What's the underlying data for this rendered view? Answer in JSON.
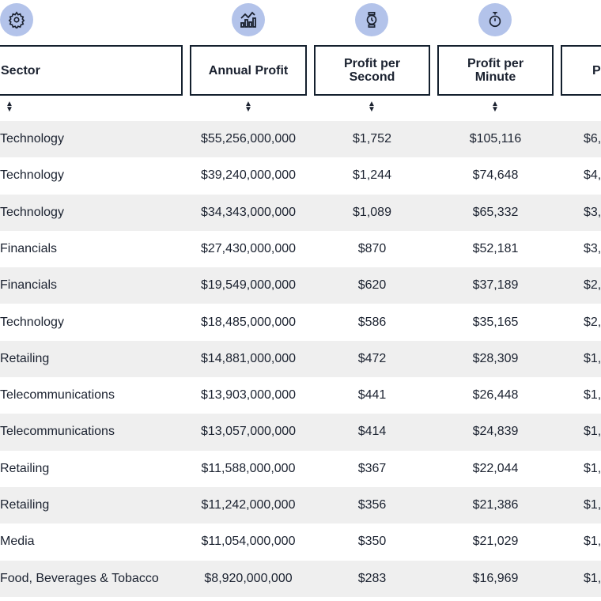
{
  "headers": [
    {
      "label": "Sector",
      "icon": "gear-icon"
    },
    {
      "label": "Annual Profit",
      "icon": "chart-growth-icon"
    },
    {
      "label": "Profit per Second",
      "icon": "watch-icon"
    },
    {
      "label": "Profit per Minute",
      "icon": "stopwatch-icon"
    },
    {
      "label": "Pr",
      "icon": ""
    }
  ],
  "rows": [
    [
      "Technology",
      "$55,256,000,000",
      "$1,752",
      "$105,116",
      "$6,"
    ],
    [
      "Technology",
      "$39,240,000,000",
      "$1,244",
      "$74,648",
      "$4,"
    ],
    [
      "Technology",
      "$34,343,000,000",
      "$1,089",
      "$65,332",
      "$3,"
    ],
    [
      "Financials",
      "$27,430,000,000",
      "$870",
      "$52,181",
      "$3,"
    ],
    [
      "Financials",
      "$19,549,000,000",
      "$620",
      "$37,189",
      "$2,"
    ],
    [
      "Technology",
      "$18,485,000,000",
      "$586",
      "$35,165",
      "$2,"
    ],
    [
      "Retailing",
      "$14,881,000,000",
      "$472",
      "$28,309",
      "$1,"
    ],
    [
      "Telecommunications",
      "$13,903,000,000",
      "$441",
      "$26,448",
      "$1,"
    ],
    [
      "Telecommunications",
      "$13,057,000,000",
      "$414",
      "$24,839",
      "$1,"
    ],
    [
      "Retailing",
      "$11,588,000,000",
      "$367",
      "$22,044",
      "$1,"
    ],
    [
      "Retailing",
      "$11,242,000,000",
      "$356",
      "$21,386",
      "$1,"
    ],
    [
      "Media",
      "$11,054,000,000",
      "$350",
      "$21,029",
      "$1,"
    ],
    [
      "Food, Beverages & Tobacco",
      "$8,920,000,000",
      "$283",
      "$16,969",
      "$1,"
    ]
  ],
  "colors": {
    "icon_bg": "#b3c3ea",
    "stripe": "#efefef",
    "border": "#14202e"
  }
}
